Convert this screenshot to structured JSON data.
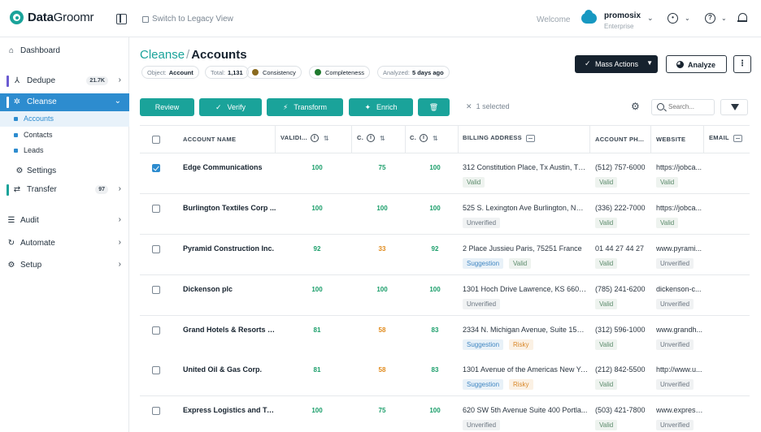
{
  "app": {
    "brand_bold": "Data",
    "brand_light": "Groomr",
    "legacy_link": "Switch to Legacy View",
    "welcome": "Welcome",
    "org_name": "promosix",
    "org_edition": "Enterprise",
    "brand_color": "#1aa39a",
    "accent_color": "#2d8ccf"
  },
  "sidebar": {
    "dashboard": "Dashboard",
    "dedupe": "Dedupe",
    "dedupe_badge": "21.7K",
    "cleanse": "Cleanse",
    "cleanse_sub": [
      "Accounts",
      "Contacts",
      "Leads"
    ],
    "settings": "Settings",
    "transfer": "Transfer",
    "transfer_badge": "97",
    "audit": "Audit",
    "automate": "Automate",
    "setup": "Setup"
  },
  "breadcrumb": {
    "parent": "Cleanse",
    "separator": "/",
    "current": "Accounts"
  },
  "chips": {
    "object_label": "Object:",
    "object_value": "Account",
    "total_label": "Total:",
    "total_value": "1,131",
    "consistency": "Consistency",
    "completeness": "Completeness",
    "analyzed_label": "Analyzed:",
    "analyzed_value": "5 days ago"
  },
  "actions": {
    "mass_actions": "Mass Actions",
    "analyze": "Analyze",
    "more": "⋮",
    "review": "Review",
    "verify": "Verify",
    "transform": "Transform",
    "enrich": "Enrich",
    "selected_text": "1 selected",
    "search_placeholder": "Search..."
  },
  "table": {
    "headers": {
      "name": "ACCOUNT NAME",
      "validity": "VALIDI...",
      "c1": "C.",
      "c2": "C.",
      "billing": "BILLING ADDRESS",
      "phone": "ACCOUNT PH...",
      "website": "WEBSITE",
      "email": "EMAIL"
    },
    "rows": [
      {
        "name": "Edge Communications",
        "v": "100",
        "c1": "75",
        "c2": "100",
        "address": "312 Constitution Place, Tx Austin, TX ...",
        "addr_tags": [
          "Valid"
        ],
        "phone": "(512) 757-6000",
        "phone_tag": "Valid",
        "website": "https://jobca...",
        "web_tag": "Valid"
      },
      {
        "name": "Burlington Textiles Corp ...",
        "v": "100",
        "c1": "100",
        "c2": "100",
        "address": "525 S. Lexington Ave Burlington, NC ...",
        "addr_tags": [
          "Unverified"
        ],
        "phone": "(336) 222-7000",
        "phone_tag": "Valid",
        "website": "https://jobca...",
        "web_tag": "Valid"
      },
      {
        "name": "Pyramid Construction Inc.",
        "v": "92",
        "c1": "33",
        "c2": "92",
        "address": "2 Place Jussieu Paris, 75251 France",
        "addr_tags": [
          "Suggestion",
          "Valid"
        ],
        "phone": "01 44 27 44 27",
        "phone_tag": "Valid",
        "website": "www.pyrami...",
        "web_tag": "Unverified"
      },
      {
        "name": "Dickenson plc",
        "v": "100",
        "c1": "100",
        "c2": "100",
        "address": "1301 Hoch Drive Lawrence, KS 66045...",
        "addr_tags": [
          "Unverified"
        ],
        "phone": "(785) 241-6200",
        "phone_tag": "Valid",
        "website": "dickenson-c...",
        "web_tag": "Unverified"
      },
      {
        "name": "Grand Hotels & Resorts Ltd",
        "v": "81",
        "c1": "58",
        "c2": "83",
        "address": "2334 N. Michigan Avenue, Suite 1500...",
        "addr_tags": [
          "Suggestion",
          "Risky"
        ],
        "phone": "(312) 596-1000",
        "phone_tag": "Valid",
        "website": "www.grandh...",
        "web_tag": "Unverified"
      },
      {
        "name": "United Oil & Gas Corp.",
        "v": "81",
        "c1": "58",
        "c2": "83",
        "address": "1301 Avenue of the Americas New Yo...",
        "addr_tags": [
          "Suggestion",
          "Risky"
        ],
        "phone": "(212) 842-5500",
        "phone_tag": "Valid",
        "website": "http://www.u...",
        "web_tag": "Unverified"
      },
      {
        "name": "Express Logistics and Tra...",
        "v": "100",
        "c1": "75",
        "c2": "100",
        "address": "620 SW 5th Avenue Suite 400 Portla...",
        "addr_tags": [
          "Unverified"
        ],
        "phone": "(503) 421-7800",
        "phone_tag": "Valid",
        "website": "www.express...",
        "web_tag": "Unverified"
      }
    ]
  }
}
